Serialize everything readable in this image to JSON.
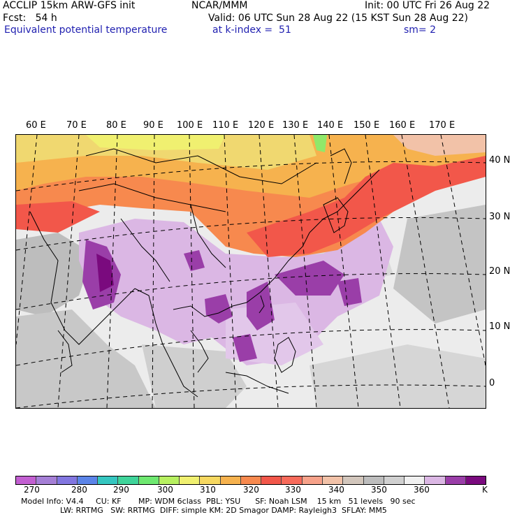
{
  "header": {
    "model": "ACCLIP 15km ARW-GFS init",
    "fcst": "Fcst:   54 h",
    "org": "NCAR/MMM",
    "init": "Init: 00 UTC Fri 26 Aug 22",
    "valid": "Valid: 06 UTC Sun 28 Aug 22 (15 KST Sun 28 Aug 22)",
    "field": "Equivalent potential temperature",
    "level": "at k-index =  51",
    "smooth": "sm= 2"
  },
  "map": {
    "lon_labels": [
      "60 E",
      "70 E",
      "80 E",
      "90 E",
      "100 E",
      "110 E",
      "120 E",
      "130 E",
      "140 E",
      "150 E",
      "160 E",
      "170 E"
    ],
    "lat_labels": [
      "40 N",
      "30 N",
      "20 N",
      "10 N",
      "0"
    ]
  },
  "colorbar": {
    "colors": [
      "#c25fd1",
      "#a57fd6",
      "#8276e0",
      "#5b84e8",
      "#35c6c0",
      "#3fd49a",
      "#6ee870",
      "#b7f060",
      "#f0f070",
      "#f6d860",
      "#f6b24e",
      "#f7894e",
      "#f2574a",
      "#f76a5a",
      "#f7a28a",
      "#f2c2a8",
      "#d2c6bc",
      "#bdbdbd",
      "#d0d0d0",
      "#f0f0f0",
      "#dbb7e4",
      "#9a3ea8",
      "#7a0a7e"
    ],
    "ticks": [
      "270",
      "280",
      "290",
      "300",
      "310",
      "320",
      "330",
      "340",
      "350",
      "360"
    ],
    "unit": "K"
  },
  "footer": {
    "line1": "Model Info: V4.4     CU: KF       MP: WDM 6class  PBL: YSU      SF: Noah LSM    15 km   51 levels   90 sec",
    "line2": "                LW: RRTMG   SW: RRTMG  DIFF: simple KM: 2D Smagor DAMP: Rayleigh3  SFLAY: MM5"
  }
}
